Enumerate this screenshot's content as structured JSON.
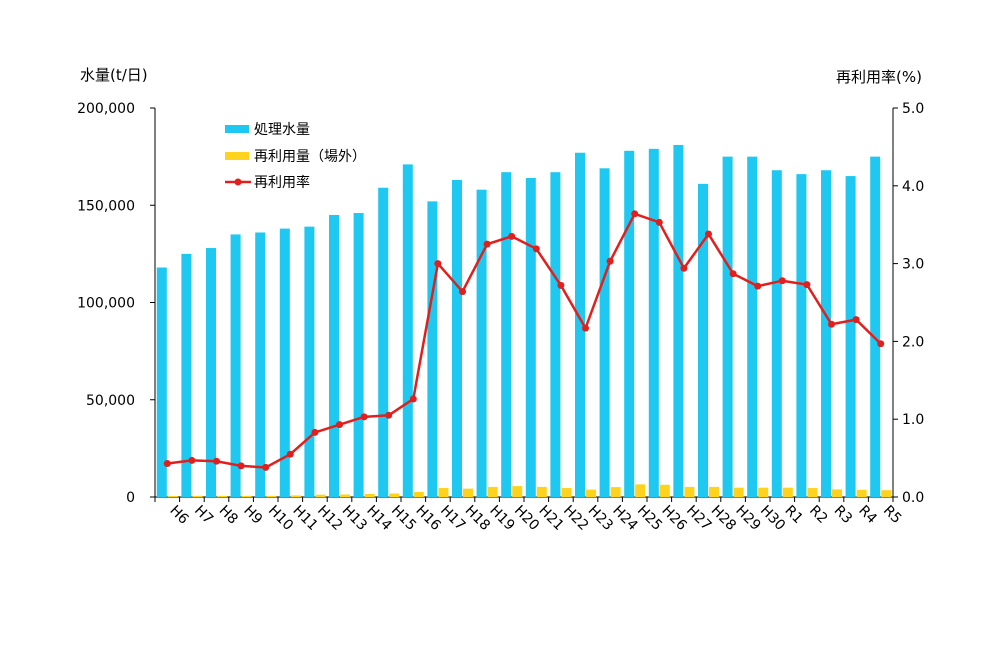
{
  "chart_data": {
    "type": "bar",
    "ylabel_left": "水量(t/日)",
    "ylabel_right": "再利用率(%)",
    "categories": [
      "H6",
      "H7",
      "H8",
      "H9",
      "H10",
      "H11",
      "H12",
      "H13",
      "H14",
      "H15",
      "H16",
      "H17",
      "H18",
      "H19",
      "H20",
      "H21",
      "H22",
      "H23",
      "H24",
      "H25",
      "H26",
      "H27",
      "H28",
      "H29",
      "H30",
      "R1",
      "R2",
      "R3",
      "R4",
      "R5"
    ],
    "ylim_left": [
      0,
      200000
    ],
    "yticks_left": [
      "0",
      "50,000",
      "100,000",
      "150,000",
      "200,000"
    ],
    "ylim_right": [
      0,
      5.0
    ],
    "yticks_right": [
      "0.0",
      "1.0",
      "2.0",
      "3.0",
      "4.0",
      "5.0"
    ],
    "legend_position": "top-left",
    "series": [
      {
        "name": "処理水量",
        "kind": "bar",
        "axis": "left",
        "color": "#1EC8F0",
        "values": [
          118000,
          125000,
          128000,
          135000,
          136000,
          138000,
          139000,
          145000,
          146000,
          159000,
          171000,
          152000,
          163000,
          158000,
          167000,
          164000,
          167000,
          177000,
          169000,
          178000,
          179000,
          181000,
          161000,
          175000,
          175000,
          168000,
          166000,
          168000,
          165000,
          175000
        ]
      },
      {
        "name": "再利用量（場外）",
        "kind": "bar",
        "axis": "left",
        "color": "#FFD21E",
        "values": [
          500,
          600,
          600,
          600,
          600,
          800,
          1200,
          1300,
          1600,
          1800,
          2600,
          4600,
          4300,
          5200,
          5600,
          5200,
          4600,
          3800,
          5100,
          6500,
          6300,
          5200,
          5200,
          4800,
          4800,
          4800,
          4600,
          3900,
          3700,
          3500
        ]
      },
      {
        "name": "再利用率",
        "kind": "line",
        "axis": "right",
        "color": "#E1201E",
        "values": [
          0.43,
          0.47,
          0.46,
          0.4,
          0.38,
          0.55,
          0.83,
          0.93,
          1.03,
          1.05,
          1.26,
          3.0,
          2.64,
          3.25,
          3.35,
          3.19,
          2.72,
          2.17,
          3.03,
          3.64,
          3.53,
          2.94,
          3.38,
          2.87,
          2.71,
          2.78,
          2.73,
          2.22,
          2.28,
          1.97
        ]
      }
    ]
  }
}
